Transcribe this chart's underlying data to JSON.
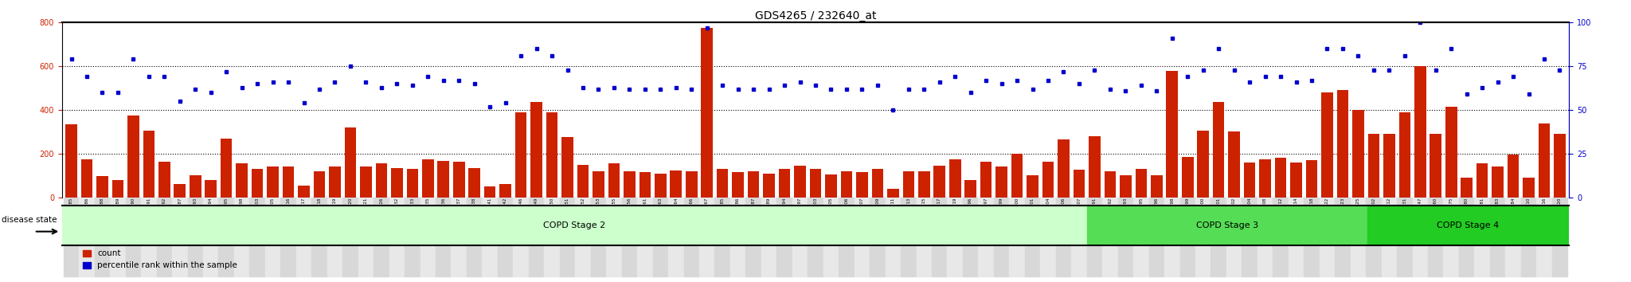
{
  "title": "GDS4265 / 232640_at",
  "samples": [
    "GSM550785",
    "GSM550786",
    "GSM550788",
    "GSM550789",
    "GSM550790",
    "GSM550791",
    "GSM550792",
    "GSM550787",
    "GSM550793",
    "GSM550794",
    "GSM550795",
    "GSM550798",
    "GSM550803",
    "GSM550805",
    "GSM550816",
    "GSM550817",
    "GSM550818",
    "GSM550819",
    "GSM550820",
    "GSM550821",
    "GSM550826",
    "GSM550832",
    "GSM550833",
    "GSM550835",
    "GSM550836",
    "GSM550837",
    "GSM550838",
    "GSM550841",
    "GSM550842",
    "GSM550846",
    "GSM550849",
    "GSM550850",
    "GSM550851",
    "GSM550852",
    "GSM550853",
    "GSM550855",
    "GSM550856",
    "GSM550861",
    "GSM550863",
    "GSM550864",
    "GSM550866",
    "GSM550867",
    "GSM550885",
    "GSM550886",
    "GSM550887",
    "GSM550889",
    "GSM550894",
    "GSM550897",
    "GSM550903",
    "GSM550905",
    "GSM550906",
    "GSM550907",
    "GSM550909",
    "GSM550911",
    "GSM550913",
    "GSM550915",
    "GSM550917",
    "GSM550919",
    "GSM550796",
    "GSM550797",
    "GSM550799",
    "GSM550800",
    "GSM550801",
    "GSM550804",
    "GSM550806",
    "GSM550807",
    "GSM550891",
    "GSM550892",
    "GSM550893",
    "GSM550895",
    "GSM550896",
    "GSM550898",
    "GSM550899",
    "GSM550900",
    "GSM550901",
    "GSM550902",
    "GSM550904",
    "GSM550908",
    "GSM550912",
    "GSM550914",
    "GSM550918",
    "GSM550922",
    "GSM550923",
    "GSM550925",
    "GSM550802",
    "GSM550812",
    "GSM550831",
    "GSM550847",
    "GSM550860",
    "GSM550875",
    "GSM550880",
    "GSM550881",
    "GSM550883",
    "GSM550884",
    "GSM550910",
    "GSM550916",
    "GSM550920"
  ],
  "counts": [
    335,
    175,
    97,
    80,
    375,
    305,
    163,
    60,
    100,
    80,
    270,
    155,
    130,
    140,
    140,
    55,
    120,
    140,
    320,
    140,
    155,
    135,
    130,
    175,
    168,
    165,
    135,
    50,
    60,
    390,
    435,
    390,
    275,
    150,
    120,
    155,
    120,
    115,
    110,
    125,
    120,
    775,
    130,
    115,
    120,
    110,
    130,
    145,
    130,
    105,
    120,
    115,
    130,
    40,
    120,
    120,
    145,
    175,
    80,
    162,
    143,
    200,
    100,
    163,
    264,
    128,
    280,
    120,
    100,
    130,
    100,
    580,
    185,
    305,
    435,
    300,
    160,
    175,
    180,
    160,
    170,
    480,
    490,
    400,
    290,
    290,
    390,
    600,
    290,
    415,
    90,
    155,
    140,
    195,
    90,
    340,
    290
  ],
  "percentiles_pct": [
    79,
    69,
    60,
    60,
    79,
    69,
    69,
    55,
    62,
    60,
    72,
    63,
    65,
    66,
    66,
    54,
    62,
    66,
    75,
    66,
    63,
    65,
    64,
    69,
    67,
    67,
    65,
    52,
    54,
    81,
    85,
    81,
    73,
    63,
    62,
    63,
    62,
    62,
    62,
    63,
    62,
    97,
    64,
    62,
    62,
    62,
    64,
    66,
    64,
    62,
    62,
    62,
    64,
    50,
    62,
    62,
    66,
    69,
    60,
    67,
    65,
    67,
    62,
    67,
    72,
    65,
    73,
    62,
    61,
    64,
    61,
    91,
    69,
    73,
    85,
    73,
    66,
    69,
    69,
    66,
    67,
    85,
    85,
    81,
    73,
    73,
    81,
    100,
    73,
    85,
    59,
    63,
    66,
    69,
    59,
    79,
    73
  ],
  "stage2_count": 66,
  "stage3_count": 18,
  "stage4_count": 13,
  "stage2_label": "COPD Stage 2",
  "stage3_label": "COPD Stage 3",
  "stage4_label": "COPD Stage 4",
  "disease_state_label": "disease state",
  "bar_color": "#cc2200",
  "dot_color": "#0000cc",
  "left_ylim": [
    0,
    800
  ],
  "right_ylim": [
    0,
    100
  ],
  "left_yticks": [
    0,
    200,
    400,
    600,
    800
  ],
  "right_yticks": [
    0,
    25,
    50,
    75,
    100
  ],
  "stage2_color": "#ccffcc",
  "stage3_color": "#55dd55",
  "stage4_color": "#22cc22",
  "legend_count_label": "count",
  "legend_pct_label": "percentile rank within the sample"
}
